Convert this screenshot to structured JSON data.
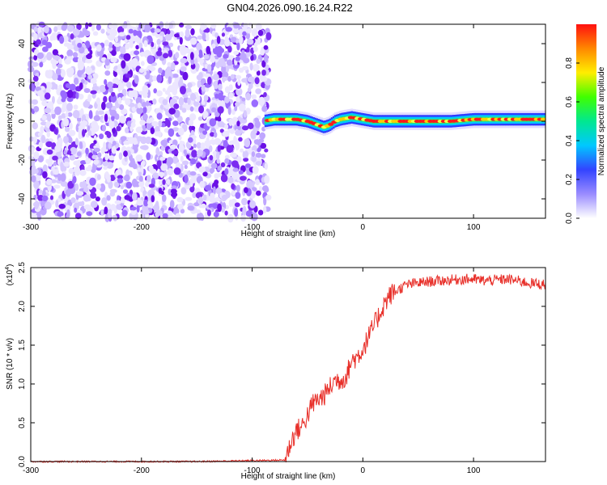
{
  "title": "GN04.2026.090.16.24.R22",
  "chart_data": [
    {
      "type": "heatmap",
      "xlabel": "Height of straight line (km)",
      "ylabel": "Frequency (Hz)",
      "xlim": [
        -300,
        165
      ],
      "ylim": [
        -50,
        50
      ],
      "xticks": [
        -300,
        -200,
        -100,
        0,
        100
      ],
      "yticks": [
        -40,
        -20,
        0,
        20,
        40
      ],
      "noise_region_x": [
        -300,
        -85
      ],
      "signal_ridge": {
        "x": [
          -90,
          -80,
          -70,
          -60,
          -50,
          -40,
          -35,
          -30,
          -25,
          -20,
          -10,
          0,
          10,
          20,
          40,
          60,
          80,
          100,
          120,
          140,
          165
        ],
        "y": [
          0,
          1,
          1,
          1,
          0,
          -2,
          -3,
          -2,
          0,
          1,
          2,
          1,
          0,
          0,
          0,
          0,
          0,
          1,
          1,
          1,
          1
        ]
      },
      "colorbar": {
        "label": "Normalized spectral amplitude",
        "ticks": [
          "0.0",
          "0.2",
          "0.4",
          "0.6",
          "0.8"
        ],
        "range": [
          0,
          1
        ],
        "colors": [
          "#ffffff",
          "#9a8cff",
          "#3344ff",
          "#00c8ff",
          "#00e890",
          "#40ff00",
          "#ffee00",
          "#ff8800",
          "#ff1010"
        ]
      }
    },
    {
      "type": "line",
      "xlabel": "Height of straight line (km)",
      "ylabel": "SNR (10 * v/v)",
      "ylabel_exponent": "(x10",
      "ylabel_exponent_power": "4",
      "ylabel_exponent_close": ")",
      "xlim": [
        -300,
        165
      ],
      "ylim": [
        0,
        2.5
      ],
      "xticks": [
        -300,
        -200,
        -100,
        0,
        100
      ],
      "yticks": [
        "0.0",
        "0.5",
        "1.0",
        "1.5",
        "2.0",
        "2.5"
      ],
      "color": "#e8302a",
      "series": [
        {
          "x": [
            -300,
            -150,
            -70,
            -65,
            -60,
            -55,
            -50,
            -45,
            -40,
            -35,
            -30,
            -25,
            -20,
            -15,
            -10,
            -5,
            0,
            5,
            10,
            15,
            20,
            25,
            30,
            40,
            50,
            60,
            70,
            80,
            90,
            100,
            110,
            120,
            130,
            140,
            150,
            165
          ],
          "y": [
            0.0,
            0.0,
            0.02,
            0.25,
            0.4,
            0.45,
            0.6,
            0.75,
            0.8,
            0.85,
            0.95,
            1.05,
            1.05,
            1.1,
            1.3,
            1.35,
            1.45,
            1.6,
            1.75,
            1.9,
            2.05,
            2.15,
            2.2,
            2.28,
            2.3,
            2.32,
            2.33,
            2.34,
            2.35,
            2.35,
            2.33,
            2.34,
            2.35,
            2.33,
            2.3,
            2.28
          ]
        }
      ]
    }
  ]
}
